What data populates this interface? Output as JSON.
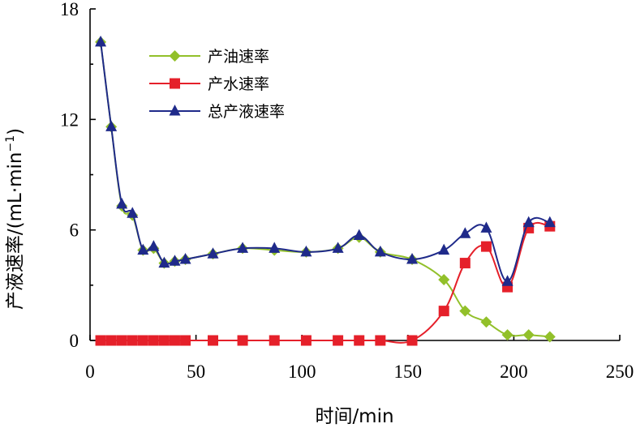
{
  "chart_data": {
    "type": "line",
    "title": "",
    "xlabel": "时间/min",
    "ylabel": "产液速率/(mL·min",
    "ylabel_superscript": "−1",
    "ylabel_close": ")",
    "xlim": [
      0,
      250
    ],
    "ylim": [
      0,
      18
    ],
    "xticks": [
      0,
      50,
      100,
      150,
      200,
      250
    ],
    "yticks": [
      0,
      6,
      12,
      18
    ],
    "xtick_labels": [
      "0",
      "50",
      "100",
      "150",
      "200",
      "250"
    ],
    "ytick_labels": [
      "0",
      "6",
      "12",
      "18"
    ],
    "grid": false,
    "legend_position": "top-left",
    "series": [
      {
        "name": "产油速率",
        "color": "#92c02a",
        "marker": "diamond",
        "x": [
          5,
          10,
          15,
          20,
          25,
          30,
          35,
          40,
          45,
          58,
          72,
          87,
          102,
          117,
          127,
          137,
          152,
          167,
          177,
          187,
          197,
          207,
          217
        ],
        "y": [
          16.2,
          11.6,
          7.3,
          6.8,
          4.9,
          5.0,
          4.2,
          4.3,
          4.4,
          4.7,
          5.0,
          4.9,
          4.8,
          5.0,
          5.6,
          4.8,
          4.4,
          3.3,
          1.6,
          1.0,
          0.3,
          0.3,
          0.2
        ]
      },
      {
        "name": "产水速率",
        "color": "#e5202a",
        "marker": "square",
        "x": [
          5,
          10,
          15,
          20,
          25,
          30,
          35,
          40,
          45,
          58,
          72,
          87,
          102,
          117,
          127,
          137,
          152,
          167,
          177,
          187,
          197,
          207,
          217
        ],
        "y": [
          0,
          0,
          0,
          0,
          0,
          0,
          0,
          0,
          0,
          0,
          0,
          0,
          0,
          0,
          0,
          0,
          0,
          1.6,
          4.2,
          5.1,
          2.9,
          6.1,
          6.2
        ]
      },
      {
        "name": "总产液速率",
        "color": "#1f2a8a",
        "marker": "triangle",
        "x": [
          5,
          10,
          15,
          20,
          25,
          30,
          35,
          40,
          45,
          58,
          72,
          87,
          102,
          117,
          127,
          137,
          152,
          167,
          177,
          187,
          197,
          207,
          217
        ],
        "y": [
          16.2,
          11.6,
          7.4,
          6.9,
          4.9,
          5.1,
          4.2,
          4.3,
          4.4,
          4.7,
          5.0,
          5.0,
          4.8,
          5.0,
          5.7,
          4.8,
          4.4,
          4.9,
          5.8,
          6.1,
          3.2,
          6.4,
          6.4
        ]
      }
    ]
  }
}
